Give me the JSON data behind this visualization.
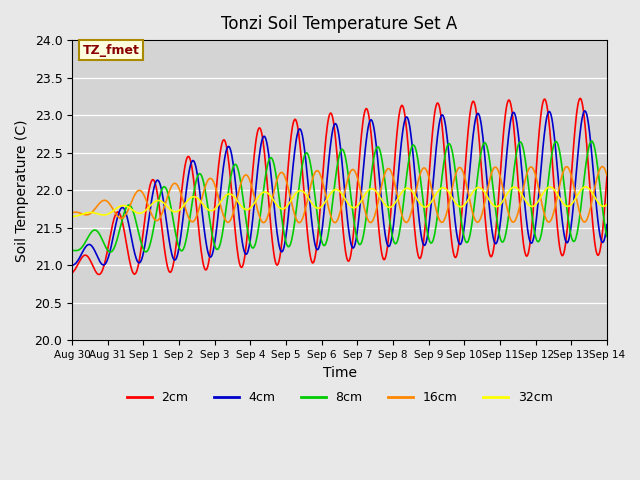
{
  "title": "Tonzi Soil Temperature Set A",
  "xlabel": "Time",
  "ylabel": "Soil Temperature (C)",
  "ylim": [
    20.0,
    24.0
  ],
  "yticks": [
    20.0,
    20.5,
    21.0,
    21.5,
    22.0,
    22.5,
    23.0,
    23.5,
    24.0
  ],
  "xtick_labels": [
    "Aug 30",
    "Aug 31",
    "Sep 1",
    "Sep 2",
    "Sep 3",
    "Sep 4",
    "Sep 5",
    "Sep 6",
    "Sep 7",
    "Sep 8",
    "Sep 9",
    "Sep 10",
    "Sep 11",
    "Sep 12",
    "Sep 13",
    "Sep 14"
  ],
  "annotation_label": "TZ_fmet",
  "legend_entries": [
    "2cm",
    "4cm",
    "8cm",
    "16cm",
    "32cm"
  ],
  "line_colors": [
    "#ff0000",
    "#0000cc",
    "#00cc00",
    "#ff8800",
    "#ffff00"
  ],
  "background_color": "#e8e8e8",
  "plot_bg_color": "#d4d4d4",
  "n_days": 16,
  "samples_per_day": 48,
  "phase_shifts": [
    0.0,
    0.13,
    0.32,
    0.62,
    1.15
  ],
  "amplitudes": [
    1.05,
    0.88,
    0.67,
    0.37,
    0.13
  ],
  "trend_end": [
    22.2,
    22.2,
    22.0,
    21.95,
    21.92
  ],
  "trend_start": [
    20.9,
    21.0,
    21.2,
    21.7,
    21.65
  ],
  "amp_rise_tau": 2.5,
  "trend_tau": 3.5
}
